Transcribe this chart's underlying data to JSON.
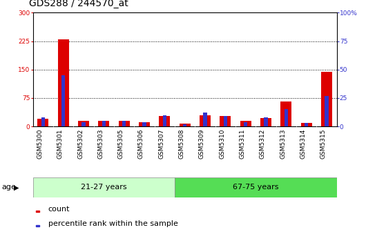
{
  "title": "GDS288 / 244570_at",
  "samples": [
    "GSM5300",
    "GSM5301",
    "GSM5302",
    "GSM5303",
    "GSM5305",
    "GSM5306",
    "GSM5307",
    "GSM5308",
    "GSM5309",
    "GSM5310",
    "GSM5311",
    "GSM5312",
    "GSM5313",
    "GSM5314",
    "GSM5315"
  ],
  "count": [
    20,
    230,
    15,
    15,
    15,
    12,
    28,
    8,
    30,
    28,
    15,
    22,
    65,
    10,
    145
  ],
  "percentile": [
    8,
    45,
    4,
    5,
    5,
    4,
    10,
    2,
    12,
    9,
    4,
    8,
    15,
    3,
    27
  ],
  "red_color": "#dd0000",
  "blue_color": "#3333cc",
  "left_ylim": [
    0,
    300
  ],
  "right_ylim": [
    0,
    100
  ],
  "left_yticks": [
    0,
    75,
    150,
    225,
    300
  ],
  "right_yticks": [
    0,
    25,
    50,
    75,
    100
  ],
  "right_yticklabels": [
    "0",
    "25",
    "50",
    "75",
    "100%"
  ],
  "group1_label": "21-27 years",
  "group2_label": "67-75 years",
  "n_group1": 7,
  "n_group2": 8,
  "age_label": "age",
  "legend_count": "count",
  "legend_percentile": "percentile rank within the sample",
  "group1_color": "#ccffcc",
  "group2_color": "#55dd55",
  "ticklabel_bg": "#cccccc",
  "red_bar_width": 0.55,
  "blue_bar_width": 0.18,
  "background_color": "#ffffff",
  "plot_bg": "#ffffff",
  "title_fontsize": 10,
  "tick_fontsize": 6.5,
  "label_fontsize": 8,
  "grid_color": "#000000",
  "grid_lw": 0.7
}
